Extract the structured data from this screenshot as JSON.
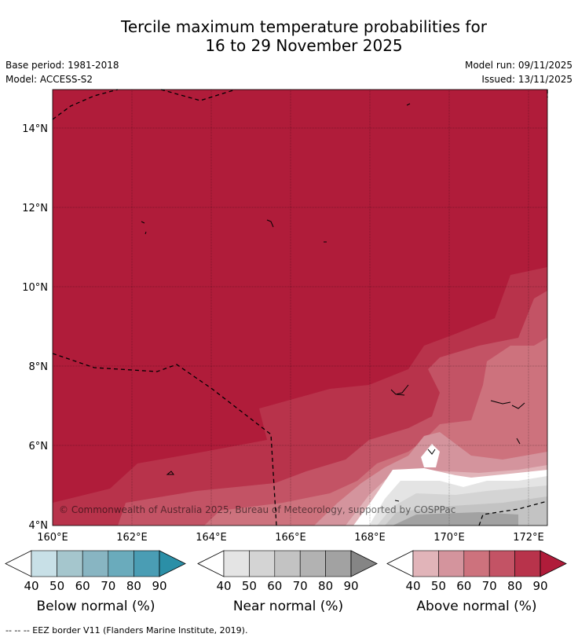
{
  "title": {
    "line1": "Tercile maximum temperature probabilities for",
    "line2": "16 to 29 November 2025"
  },
  "info": {
    "base_period": "Base period: 1981-2018",
    "model": "Model: ACCESS-S2",
    "model_run": "Model run: 09/11/2025",
    "issued": "Issued: 13/11/2025"
  },
  "map": {
    "lon_labels": [
      "160°E",
      "162°E",
      "164°E",
      "166°E",
      "168°E",
      "170°E",
      "172°E"
    ],
    "lat_labels": [
      "14°N",
      "12°N",
      "10°N",
      "8°N",
      "6°N",
      "4°N"
    ],
    "copyright": "© Commonwealth of Australia 2025, Bureau of Meteorology, supported by COSPPac",
    "dominant_category": "Above normal",
    "dominant_probability_min": 90
  },
  "colorbars": [
    {
      "label": "Below normal (%)",
      "ticks": [
        "40",
        "50",
        "60",
        "70",
        "80",
        "90"
      ],
      "colors": [
        "#ffffff",
        "#c8e0e7",
        "#a5c6cd",
        "#88b5c2",
        "#6aabbc",
        "#4a9db4",
        "#2b8fa7"
      ]
    },
    {
      "label": "Near normal (%)",
      "ticks": [
        "40",
        "50",
        "60",
        "70",
        "80",
        "90"
      ],
      "colors": [
        "#ffffff",
        "#e4e4e4",
        "#d4d4d4",
        "#c3c3c3",
        "#b2b2b2",
        "#a2a2a2",
        "#858585"
      ]
    },
    {
      "label": "Above normal (%)",
      "ticks": [
        "40",
        "50",
        "60",
        "70",
        "80",
        "90"
      ],
      "colors": [
        "#ffffff",
        "#e1b4b9",
        "#d4949d",
        "#cd727d",
        "#c35365",
        "#b8334b",
        "#b01c3a"
      ]
    }
  ],
  "footer": "--  --  -- EEZ border V11 (Flanders Marine Institute, 2019)."
}
